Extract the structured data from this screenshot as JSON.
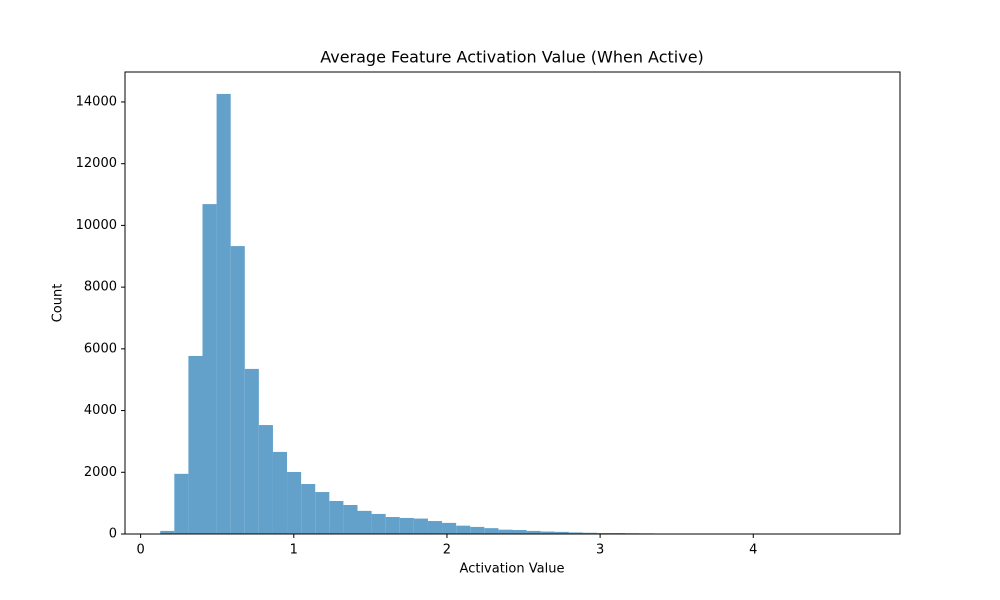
{
  "chart_data": {
    "type": "histogram",
    "title": "Average Feature Activation Value (When Active)",
    "x_label": "Activation Value",
    "y_label": "Count",
    "color": "#63a1cb",
    "bins": [
      0.128,
      0.22,
      0.312,
      0.404,
      0.496,
      0.588,
      0.68,
      0.772,
      0.864,
      0.956,
      1.048,
      1.14,
      1.232,
      1.324,
      1.416,
      1.508,
      1.6,
      1.692,
      1.784,
      1.876,
      1.968,
      2.06,
      2.152,
      2.244,
      2.336,
      2.428,
      2.52,
      2.612,
      2.704,
      2.796,
      2.888,
      2.98,
      3.072,
      3.164,
      3.256,
      3.348,
      3.44,
      3.532,
      3.624,
      3.716,
      3.808,
      3.9,
      3.992,
      4.084,
      4.176,
      4.268,
      4.36,
      4.452,
      4.544,
      4.636,
      4.728
    ],
    "counts": [
      100,
      1950,
      5770,
      10690,
      14260,
      9330,
      5350,
      3530,
      2660,
      2010,
      1620,
      1360,
      1070,
      940,
      750,
      650,
      550,
      520,
      500,
      420,
      360,
      270,
      230,
      190,
      140,
      130,
      100,
      80,
      70,
      50,
      40,
      30,
      30,
      25,
      20,
      15,
      10,
      8,
      6,
      5,
      4,
      3,
      3,
      2,
      2,
      1,
      1,
      1,
      0,
      1
    ],
    "xlim": [
      -0.102,
      4.958
    ],
    "ylim": [
      0,
      14971
    ],
    "xticks": [
      0,
      1,
      2,
      3,
      4
    ],
    "yticks": [
      0,
      2000,
      4000,
      6000,
      8000,
      10000,
      12000,
      14000
    ]
  }
}
